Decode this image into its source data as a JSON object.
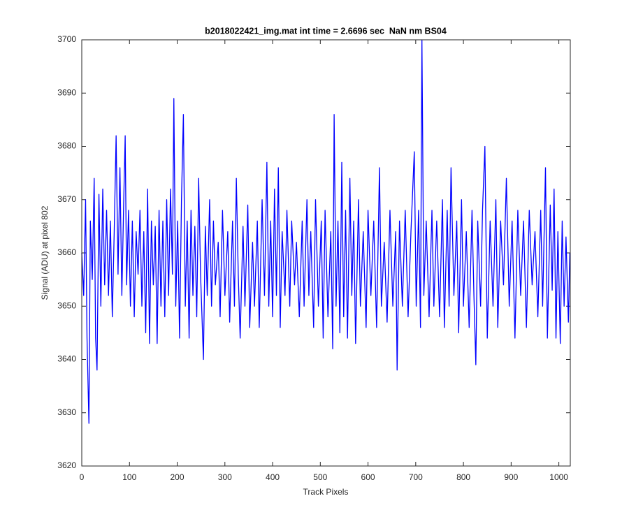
{
  "chart_data": {
    "type": "line",
    "title": "b2018022421_img.mat int time = 2.6696 sec  NaN nm BS04",
    "x_label": "Track Pixels",
    "y_label": "Signal (ADU) at pixel 802",
    "color": "#0000ff",
    "xlim": [
      0,
      1024
    ],
    "xticks": [
      0,
      100,
      200,
      300,
      400,
      500,
      600,
      700,
      800,
      900,
      1000
    ],
    "ylim": [
      3620,
      3700
    ],
    "yticks": [
      3620,
      3630,
      3640,
      3650,
      3660,
      3670,
      3680,
      3690,
      3700
    ],
    "x": [
      0,
      4,
      8,
      11,
      15,
      18,
      22,
      26,
      29,
      32,
      36,
      40,
      44,
      48,
      52,
      56,
      60,
      64,
      68,
      72,
      76,
      80,
      84,
      88,
      91,
      94,
      98,
      102,
      106,
      110,
      114,
      118,
      122,
      126,
      130,
      134,
      138,
      142,
      146,
      150,
      154,
      158,
      162,
      166,
      170,
      174,
      178,
      182,
      186,
      190,
      193,
      197,
      201,
      205,
      209,
      213,
      217,
      221,
      225,
      229,
      233,
      237,
      241,
      245,
      249,
      255,
      259,
      263,
      268,
      272,
      276,
      280,
      286,
      290,
      295,
      300,
      306,
      310,
      316,
      320,
      324,
      328,
      332,
      338,
      342,
      348,
      352,
      358,
      362,
      368,
      372,
      378,
      383,
      388,
      392,
      396,
      400,
      404,
      408,
      412,
      416,
      420,
      426,
      430,
      436,
      440,
      446,
      450,
      456,
      462,
      466,
      472,
      476,
      480,
      486,
      490,
      496,
      502,
      506,
      510,
      516,
      522,
      526,
      529,
      533,
      537,
      541,
      545,
      549,
      553,
      557,
      562,
      566,
      570,
      574,
      580,
      584,
      590,
      596,
      600,
      606,
      612,
      618,
      624,
      628,
      634,
      640,
      646,
      652,
      658,
      661,
      666,
      672,
      678,
      684,
      690,
      697,
      701,
      706,
      710,
      713,
      717,
      722,
      728,
      734,
      738,
      744,
      750,
      756,
      760,
      766,
      770,
      774,
      780,
      786,
      790,
      796,
      800,
      806,
      812,
      818,
      822,
      826,
      830,
      836,
      840,
      845,
      850,
      856,
      862,
      868,
      872,
      878,
      884,
      890,
      896,
      902,
      908,
      914,
      920,
      926,
      932,
      938,
      944,
      950,
      956,
      962,
      966,
      972,
      976,
      982,
      986,
      990,
      994,
      998,
      1003,
      1007,
      1011,
      1015,
      1020,
      1023
    ],
    "values": [
      3660,
      3652,
      3670,
      3644,
      3628,
      3666,
      3655,
      3674,
      3644,
      3638,
      3671,
      3650,
      3672,
      3654,
      3668,
      3652,
      3666,
      3648,
      3664,
      3682,
      3656,
      3676,
      3652,
      3670,
      3682,
      3654,
      3668,
      3650,
      3666,
      3648,
      3664,
      3656,
      3668,
      3650,
      3664,
      3645,
      3672,
      3643,
      3666,
      3654,
      3665,
      3643,
      3668,
      3650,
      3666,
      3648,
      3670,
      3652,
      3672,
      3656,
      3689,
      3650,
      3666,
      3644,
      3670,
      3686,
      3650,
      3666,
      3644,
      3668,
      3652,
      3665,
      3648,
      3674,
      3656,
      3640,
      3665,
      3652,
      3670,
      3650,
      3666,
      3654,
      3662,
      3648,
      3668,
      3652,
      3664,
      3647,
      3666,
      3650,
      3674,
      3656,
      3644,
      3665,
      3650,
      3669,
      3646,
      3662,
      3650,
      3666,
      3646,
      3670,
      3652,
      3677,
      3650,
      3666,
      3648,
      3672,
      3652,
      3676,
      3646,
      3664,
      3652,
      3668,
      3650,
      3666,
      3654,
      3662,
      3648,
      3666,
      3650,
      3670,
      3652,
      3664,
      3646,
      3670,
      3650,
      3666,
      3644,
      3668,
      3648,
      3664,
      3642,
      3686,
      3650,
      3666,
      3645,
      3677,
      3648,
      3668,
      3644,
      3674,
      3652,
      3666,
      3643,
      3670,
      3650,
      3664,
      3646,
      3668,
      3652,
      3666,
      3646,
      3676,
      3650,
      3662,
      3647,
      3668,
      3650,
      3664,
      3638,
      3666,
      3650,
      3668,
      3648,
      3664,
      3679,
      3650,
      3668,
      3646,
      3700,
      3652,
      3666,
      3648,
      3668,
      3650,
      3666,
      3648,
      3670,
      3646,
      3668,
      3650,
      3676,
      3652,
      3666,
      3645,
      3670,
      3650,
      3664,
      3646,
      3668,
      3652,
      3639,
      3666,
      3650,
      3668,
      3680,
      3644,
      3666,
      3650,
      3670,
      3646,
      3666,
      3654,
      3674,
      3650,
      3666,
      3644,
      3668,
      3652,
      3666,
      3646,
      3668,
      3654,
      3664,
      3648,
      3668,
      3650,
      3676,
      3644,
      3669,
      3653,
      3672,
      3644,
      3664,
      3643,
      3666,
      3650,
      3663,
      3647,
      3660
    ]
  }
}
